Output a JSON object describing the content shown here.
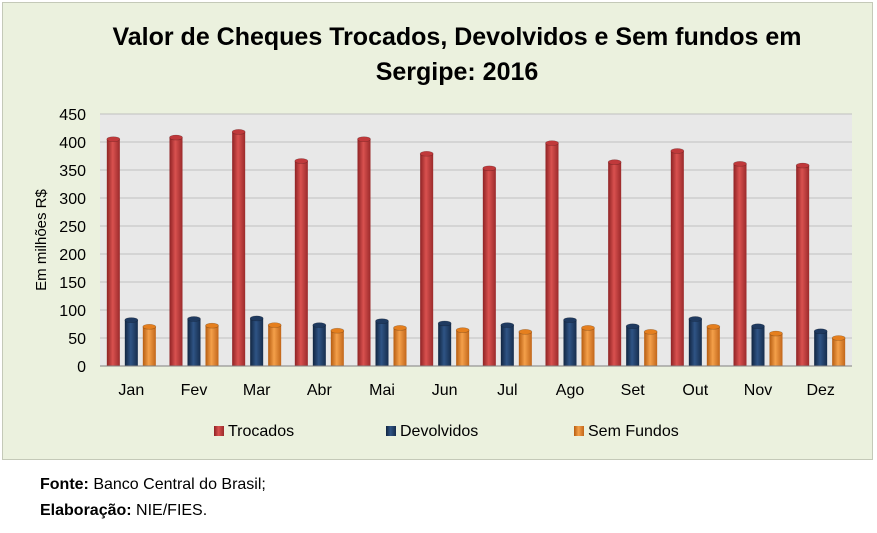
{
  "chart_data": {
    "type": "bar",
    "title": [
      "Valor de Cheques Trocados, Devolvidos e Sem fundos em",
      "Sergipe: 2016"
    ],
    "xlabel": "",
    "ylabel": "Em milhões R$",
    "ylim": [
      0,
      450
    ],
    "yticks": [
      0,
      50,
      100,
      150,
      200,
      250,
      300,
      350,
      400,
      450
    ],
    "grid": true,
    "legend_position": "bottom",
    "categories": [
      "Jan",
      "Fev",
      "Mar",
      "Abr",
      "Mai",
      "Jun",
      "Jul",
      "Ago",
      "Set",
      "Out",
      "Nov",
      "Dez"
    ],
    "series": [
      {
        "name": "Trocados",
        "color": "#c0393b",
        "values": [
          405,
          408,
          418,
          366,
          405,
          379,
          353,
          398,
          364,
          384,
          361,
          358
        ]
      },
      {
        "name": "Devolvidos",
        "color": "#1f3a60",
        "values": [
          82,
          84,
          85,
          73,
          80,
          76,
          73,
          82,
          71,
          84,
          71,
          62
        ]
      },
      {
        "name": "Sem Fundos",
        "color": "#e57f1e",
        "values": [
          70,
          72,
          73,
          63,
          68,
          64,
          61,
          68,
          61,
          70,
          58,
          50
        ]
      }
    ]
  },
  "source": {
    "fonte_label": "Fonte:",
    "fonte_value": "Banco Central do Brasil;",
    "elaboracao_label": "Elaboração:",
    "elaboracao_value": "NIE/FIES."
  }
}
